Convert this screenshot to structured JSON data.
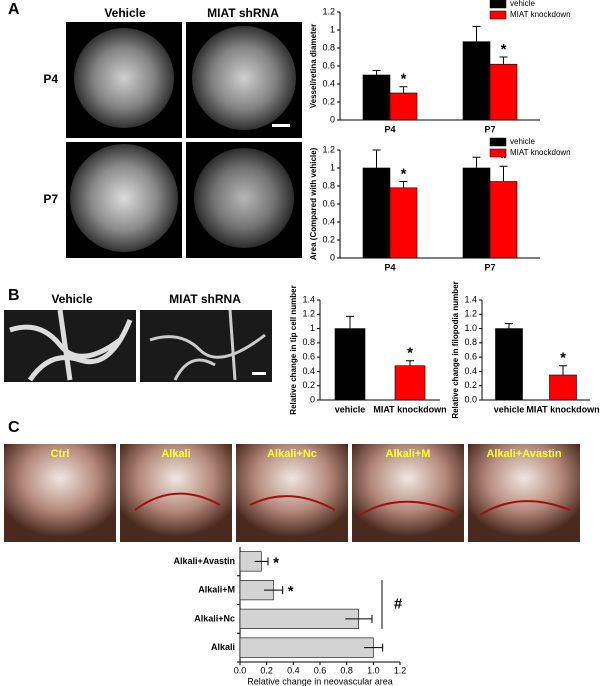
{
  "figure": {
    "panels": [
      "A",
      "B",
      "C"
    ],
    "a_columns": [
      "Vehicle",
      "MIAT shRNA"
    ],
    "a_rows": [
      "P4",
      "P7"
    ],
    "b_columns": [
      "Vehicle",
      "MIAT shRNA"
    ],
    "c_photos": [
      "Ctrl",
      "Alkali",
      "Alkali+Nc",
      "Alkali+M",
      "Alkali+Avastin"
    ]
  },
  "chart_data": [
    {
      "type": "bar",
      "ylabel": "Vessel/retina diameter",
      "categories": [
        "P4",
        "P7"
      ],
      "series": [
        {
          "name": "vehicle",
          "color": "#000000",
          "values": [
            0.5,
            0.87
          ],
          "errors": [
            0.05,
            0.17
          ]
        },
        {
          "name": "MIAT knockdown",
          "color": "#ff0000",
          "values": [
            0.3,
            0.62
          ],
          "errors": [
            0.07,
            0.08
          ],
          "labels": [
            "*",
            "*"
          ]
        }
      ],
      "ylim": [
        0,
        1.2
      ],
      "yticks": [
        0,
        0.2,
        0.4,
        0.6,
        0.8,
        1,
        1.2
      ],
      "legend": "upper right"
    },
    {
      "type": "bar",
      "ylabel": "Area (Compared with vehicle)",
      "categories": [
        "P4",
        "P7"
      ],
      "series": [
        {
          "name": "vehicle",
          "color": "#000000",
          "values": [
            1,
            1
          ],
          "errors": [
            0.2,
            0.12
          ]
        },
        {
          "name": "MIAT knockdown",
          "color": "#ff0000",
          "values": [
            0.78,
            0.85
          ],
          "errors": [
            0.07,
            0.17
          ],
          "labels": [
            "*",
            "*"
          ]
        }
      ],
      "ylim": [
        0,
        1.2
      ],
      "yticks": [
        0,
        0.2,
        0.4,
        0.6,
        0.8,
        1,
        1.2
      ],
      "legend": "upper right"
    },
    {
      "type": "bar",
      "ylabel": "Relative change in tip cell number",
      "categories": [
        "vehicle",
        "MIAT knockdown"
      ],
      "series": [
        {
          "colors": [
            "#000000",
            "#ff0000"
          ],
          "values": [
            1,
            0.48
          ],
          "errors": [
            0.17,
            0.07
          ],
          "labels": [
            null,
            "*"
          ]
        }
      ],
      "ylim": [
        0,
        1.4
      ],
      "yticks": [
        0,
        0.2,
        0.4,
        0.6,
        0.8,
        1,
        1.2,
        1.4
      ]
    },
    {
      "type": "bar",
      "ylabel": "Relative change in filopodia number",
      "categories": [
        "vehicle",
        "MIAT knockdown"
      ],
      "series": [
        {
          "colors": [
            "#000000",
            "#ff0000"
          ],
          "values": [
            1,
            0.35
          ],
          "errors": [
            0.07,
            0.13
          ],
          "labels": [
            null,
            "*"
          ]
        }
      ],
      "ylim": [
        0,
        1.4
      ],
      "yticks": [
        {
          "value": 0,
          "label": "0.0"
        },
        0.2,
        0.4,
        0.6,
        0.8,
        {
          "value": 1,
          "label": "1.0"
        },
        1.2,
        1.4
      ]
    },
    {
      "type": "barh",
      "xlabel": "Relative change in neovascular area",
      "categories": [
        "Alkali",
        "Alkali+Nc",
        "Alkali+M",
        "Alkali+Avastin"
      ],
      "series": [
        {
          "color": "#d3d3d3",
          "values": [
            1,
            0.89,
            0.25,
            0.16
          ],
          "errors": [
            0.07,
            0.1,
            0.07,
            0.05
          ],
          "labels": [
            null,
            null,
            "*",
            "*"
          ]
        }
      ],
      "xlim": [
        0,
        1.2
      ],
      "xticks": [
        {
          "value": 0,
          "label": "0.0"
        },
        0.2,
        0.4,
        0.6,
        0.8,
        {
          "value": 1,
          "label": "1.0"
        },
        1.2
      ],
      "annotations": [
        "#"
      ]
    }
  ]
}
